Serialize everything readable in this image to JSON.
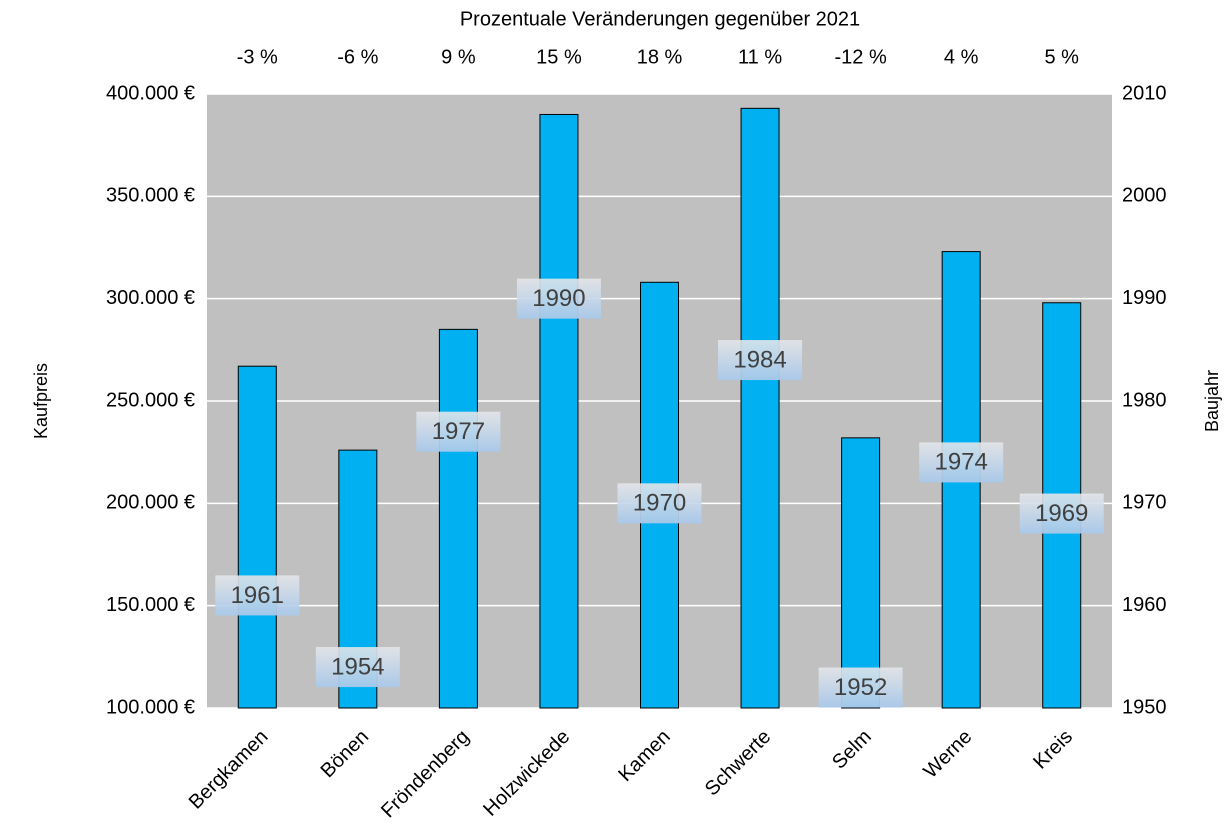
{
  "chart_data": {
    "type": "bar",
    "title": "Prozentuale Veränderungen gegenüber 2021",
    "categories": [
      "Bergkamen",
      "Bönen",
      "Fröndenberg",
      "Holzwickede",
      "Kamen",
      "Schwerte",
      "Selm",
      "Werne",
      "Kreis"
    ],
    "changes": {
      "values": [
        -3,
        -6,
        9,
        15,
        18,
        11,
        -12,
        4,
        5
      ],
      "value_labels": [
        "-3 %",
        "-6 %",
        "9 %",
        "15 %",
        "18 %",
        "11 %",
        "-12 %",
        "4 %",
        "5 %"
      ]
    },
    "series": [
      {
        "name": "Kaufpreis",
        "color": "#00b0f0",
        "values": [
          267000,
          226000,
          285000,
          390000,
          308000,
          393000,
          232000,
          323000,
          298000
        ]
      },
      {
        "name": "Baujahr",
        "axis": "y2",
        "values": [
          1961,
          1954,
          1977,
          1990,
          1970,
          1984,
          1952,
          1974,
          1969
        ]
      }
    ],
    "ylabel": "Kaufpreis",
    "y2label": "Baujahr",
    "ylim": [
      100000,
      400000
    ],
    "yticks": [
      {
        "value": 100000,
        "label": "100.000 €"
      },
      {
        "value": 150000,
        "label": "150.000 €"
      },
      {
        "value": 200000,
        "label": "200.000 €"
      },
      {
        "value": 250000,
        "label": "250.000 €"
      },
      {
        "value": 300000,
        "label": "300.000 €"
      },
      {
        "value": 350000,
        "label": "350.000 €"
      },
      {
        "value": 400000,
        "label": "400.000 €"
      }
    ],
    "y2lim": [
      1950,
      2010
    ],
    "y2ticks": [
      1950,
      1960,
      1970,
      1980,
      1990,
      2000,
      2010
    ],
    "grid": true
  }
}
